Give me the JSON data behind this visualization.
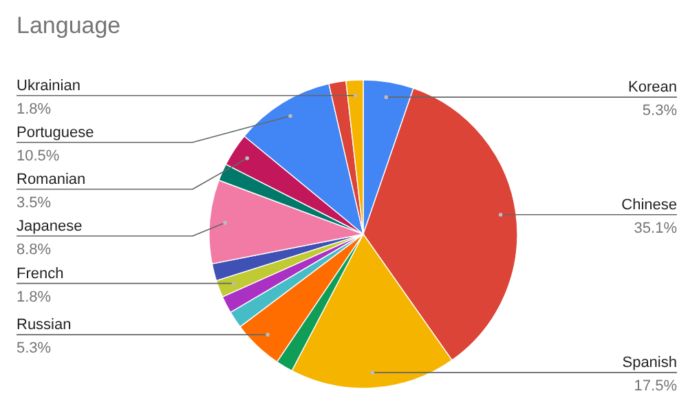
{
  "chart_data": {
    "type": "pie",
    "title": "Language",
    "categories": [
      "Korean",
      "Chinese",
      "Spanish",
      null,
      "Russian",
      null,
      null,
      "French",
      null,
      "Japanese",
      null,
      "Romanian",
      "Portuguese",
      null,
      "Ukrainian"
    ],
    "values": [
      5.3,
      35.1,
      17.5,
      1.8,
      5.3,
      1.8,
      1.8,
      1.8,
      1.8,
      8.8,
      1.8,
      3.5,
      10.5,
      1.8,
      1.8
    ],
    "value_labels": [
      "5.3%",
      "35.1%",
      "17.5%",
      null,
      "5.3%",
      null,
      null,
      "1.8%",
      null,
      "8.8%",
      null,
      "3.5%",
      "10.5%",
      null,
      "1.8%"
    ],
    "colors": [
      "#4285f4",
      "#db4437",
      "#f4b400",
      "#0f9d58",
      "#ff6d01",
      "#46bdc6",
      "#ab30c4",
      "#c0ca33",
      "#3f51b5",
      "#f27ba5",
      "#00796b",
      "#c2185b",
      "#4285f4",
      "#db4437",
      "#f4b400"
    ]
  }
}
